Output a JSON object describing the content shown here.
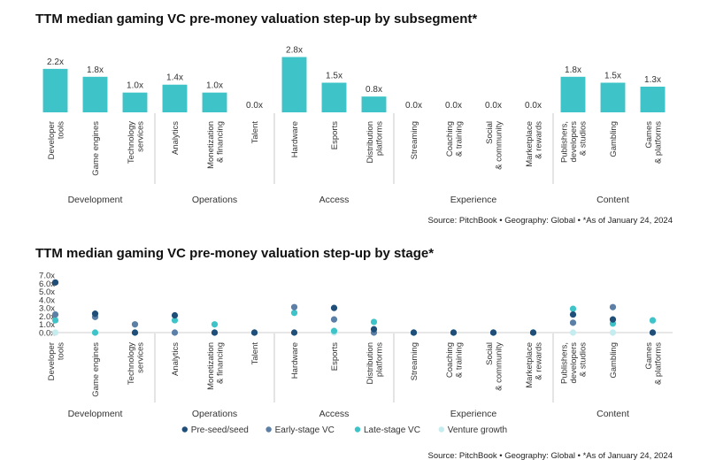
{
  "chart1_title": "TTM median gaming VC pre-money valuation step-up by subsegment*",
  "chart2_title": "TTM median gaming VC pre-money valuation step-up by stage*",
  "source_1": "Source: PitchBook  •  Geography: Global  •  *As of January 24, 2024",
  "source_2": "Source: PitchBook  •  Geography: Global  •  *As of January 24, 2024",
  "colors": {
    "bar": "#3ec4c8",
    "pre_seed": "#1f4e79",
    "early_stage": "#5b7fa6",
    "late_stage": "#3ec4c8",
    "venture_growth": "#c5ecee"
  },
  "chart_data": [
    {
      "type": "bar",
      "title": "TTM median gaming VC pre-money valuation step-up by subsegment*",
      "categories": [
        "Developer tools",
        "Game engines",
        "Technology services",
        "Analytics",
        "Monetization & financing",
        "Talent",
        "Hardware",
        "Esports",
        "Distribution platforms",
        "Streaming",
        "Coaching & training",
        "Social & community",
        "Marketplace & rewards",
        "Publishers, developers & studios",
        "Gambling",
        "Games & platforms"
      ],
      "values": [
        2.2,
        1.8,
        1.0,
        1.4,
        1.0,
        0.0,
        2.8,
        1.5,
        0.8,
        0.0,
        0.0,
        0.0,
        0.0,
        1.8,
        1.5,
        1.3
      ],
      "value_labels": [
        "2.2x",
        "1.8x",
        "1.0x",
        "1.4x",
        "1.0x",
        "0.0x",
        "2.8x",
        "1.5x",
        "0.8x",
        "0.0x",
        "0.0x",
        "0.0x",
        "0.0x",
        "1.8x",
        "1.5x",
        "1.3x"
      ],
      "groups": [
        {
          "name": "Development",
          "count": 3
        },
        {
          "name": "Operations",
          "count": 3
        },
        {
          "name": "Access",
          "count": 3
        },
        {
          "name": "Experience",
          "count": 4
        },
        {
          "name": "Content",
          "count": 3
        }
      ],
      "ylim": [
        0,
        3.0
      ]
    },
    {
      "type": "scatter",
      "title": "TTM median gaming VC pre-money valuation step-up by stage*",
      "categories": [
        "Developer tools",
        "Game engines",
        "Technology services",
        "Analytics",
        "Monetization & financing",
        "Talent",
        "Hardware",
        "Esports",
        "Distribution platforms",
        "Streaming",
        "Coaching & training",
        "Social & community",
        "Marketplace & rewards",
        "Publishers, developers & studios",
        "Gambling",
        "Games & platforms"
      ],
      "groups": [
        {
          "name": "Development",
          "count": 3
        },
        {
          "name": "Operations",
          "count": 3
        },
        {
          "name": "Access",
          "count": 3
        },
        {
          "name": "Experience",
          "count": 4
        },
        {
          "name": "Content",
          "count": 3
        }
      ],
      "y_ticks": [
        "7.0x",
        "6.0x",
        "5.0x",
        "4.0x",
        "3.0x",
        "2.0x",
        "1.0x",
        "0.0x"
      ],
      "ylim": [
        0,
        7
      ],
      "series": [
        {
          "name": "Pre-seed/seed",
          "values": [
            6.1,
            2.3,
            0.0,
            2.1,
            0.0,
            0.0,
            0.0,
            3.0,
            0.4,
            0.0,
            0.0,
            0.0,
            0.0,
            2.2,
            1.6,
            0.0
          ]
        },
        {
          "name": "Early-stage VC",
          "values": [
            2.2,
            1.9,
            1.0,
            0.0,
            0.0,
            0.0,
            3.1,
            1.6,
            0.0,
            0.0,
            0.0,
            0.0,
            0.0,
            1.2,
            3.1,
            0.0
          ]
        },
        {
          "name": "Late-stage VC",
          "values": [
            1.5,
            0.0,
            0.0,
            1.5,
            1.0,
            0.0,
            2.4,
            0.2,
            1.3,
            0.0,
            0.0,
            0.0,
            0.0,
            2.9,
            1.1,
            1.5
          ]
        },
        {
          "name": "Venture growth",
          "values": [
            0.0,
            0.0,
            1.0,
            0.0,
            0.0,
            0.0,
            0.0,
            0.0,
            0.0,
            0.0,
            0.0,
            0.0,
            0.0,
            0.0,
            0.0,
            1.4
          ]
        }
      ],
      "legend_position": "bottom-center"
    }
  ]
}
